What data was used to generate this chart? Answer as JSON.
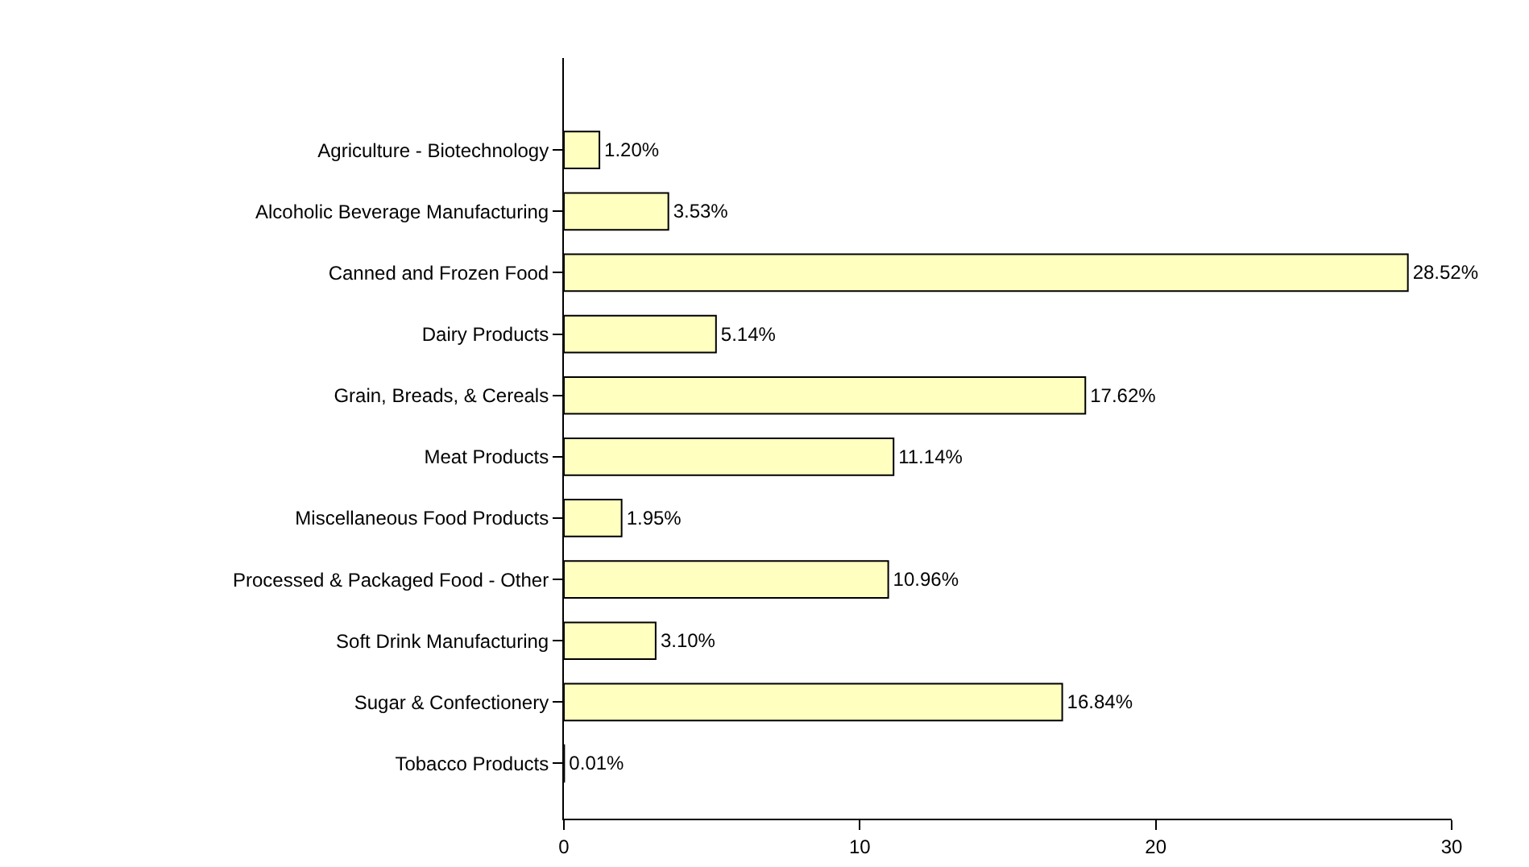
{
  "chart_data": {
    "type": "bar",
    "orientation": "horizontal",
    "categories": [
      "Agriculture - Biotechnology",
      "Alcoholic Beverage Manufacturing",
      "Canned and Frozen Food",
      "Dairy Products",
      "Grain, Breads, & Cereals",
      "Meat Products",
      "Miscellaneous Food Products",
      "Processed & Packaged Food - Other",
      "Soft Drink Manufacturing",
      "Sugar & Confectionery",
      "Tobacco Products"
    ],
    "values": [
      1.2,
      3.53,
      28.52,
      5.14,
      17.62,
      11.14,
      1.95,
      10.96,
      3.1,
      16.84,
      0.01
    ],
    "value_labels": [
      "1.20%",
      "3.53%",
      "28.52%",
      "5.14%",
      "17.62%",
      "11.14%",
      "1.95%",
      "10.96%",
      "3.10%",
      "16.84%",
      "0.01%"
    ],
    "color": "#ffffc0",
    "xlim": [
      0,
      30
    ],
    "xticks": [
      0,
      10,
      20,
      30
    ],
    "grid": false
  }
}
